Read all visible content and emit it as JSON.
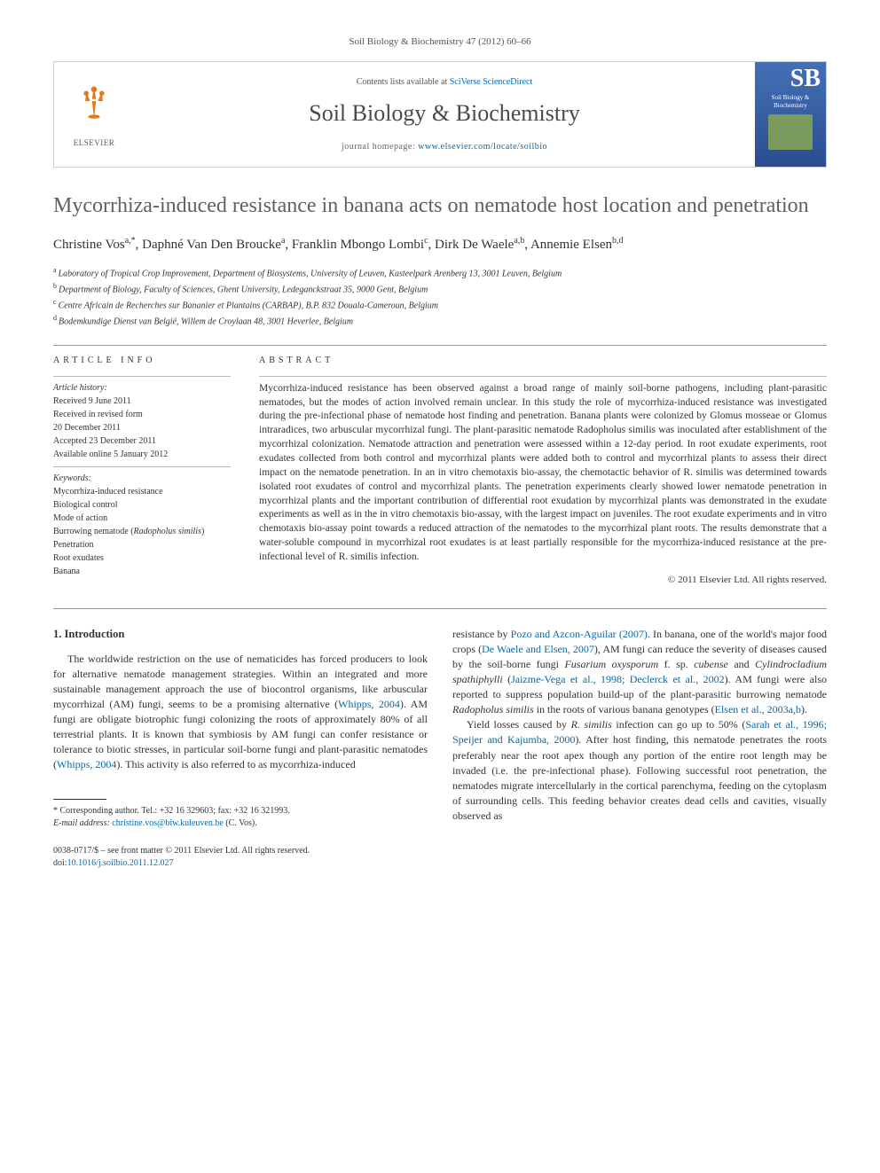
{
  "citation": "Soil Biology & Biochemistry 47 (2012) 60–66",
  "header": {
    "publisher_name": "ELSEVIER",
    "contents_prefix": "Contents lists available at ",
    "contents_link": "SciVerse ScienceDirect",
    "journal_name": "Soil Biology & Biochemistry",
    "homepage_prefix": "journal homepage: ",
    "homepage_url": "www.elsevier.com/locate/soilbio",
    "cover_sb": "SB",
    "cover_title": "Soil Biology & Biochemistry"
  },
  "title": "Mycorrhiza-induced resistance in banana acts on nematode host location and penetration",
  "authors_html": "Christine Vos<sup>a,*</sup>, Daphné Van Den Broucke<sup>a</sup>, Franklin Mbongo Lombi<sup>c</sup>, Dirk De Waele<sup>a,b</sup>, Annemie Elsen<sup>b,d</sup>",
  "affiliations": [
    {
      "sup": "a",
      "text": "Laboratory of Tropical Crop Improvement, Department of Biosystems, University of Leuven, Kasteelpark Arenberg 13, 3001 Leuven, Belgium"
    },
    {
      "sup": "b",
      "text": "Department of Biology, Faculty of Sciences, Ghent University, Ledeganckstraat 35, 9000 Gent, Belgium"
    },
    {
      "sup": "c",
      "text": "Centre Africain de Recherches sur Bananier et Plantains (CARBAP), B.P. 832 Douala-Cameroun, Belgium"
    },
    {
      "sup": "d",
      "text": "Bodemkundige Dienst van België, Willem de Croylaan 48, 3001 Heverlee, Belgium"
    }
  ],
  "article_info": {
    "label": "ARTICLE INFO",
    "history_label": "Article history:",
    "received": "Received 9 June 2011",
    "revised1": "Received in revised form",
    "revised2": "20 December 2011",
    "accepted": "Accepted 23 December 2011",
    "online": "Available online 5 January 2012",
    "keywords_label": "Keywords:",
    "keywords": [
      "Mycorrhiza-induced resistance",
      "Biological control",
      "Mode of action",
      "Burrowing nematode (Radopholus similis)",
      "Penetration",
      "Root exudates",
      "Banana"
    ]
  },
  "abstract": {
    "label": "ABSTRACT",
    "text": "Mycorrhiza-induced resistance has been observed against a broad range of mainly soil-borne pathogens, including plant-parasitic nematodes, but the modes of action involved remain unclear. In this study the role of mycorrhiza-induced resistance was investigated during the pre-infectional phase of nematode host finding and penetration. Banana plants were colonized by Glomus mosseae or Glomus intraradices, two arbuscular mycorrhizal fungi. The plant-parasitic nematode Radopholus similis was inoculated after establishment of the mycorrhizal colonization. Nematode attraction and penetration were assessed within a 12-day period. In root exudate experiments, root exudates collected from both control and mycorrhizal plants were added both to control and mycorrhizal plants to assess their direct impact on the nematode penetration. In an in vitro chemotaxis bio-assay, the chemotactic behavior of R. similis was determined towards isolated root exudates of control and mycorrhizal plants. The penetration experiments clearly showed lower nematode penetration in mycorrhizal plants and the important contribution of differential root exudation by mycorrhizal plants was demonstrated in the exudate experiments as well as in the in vitro chemotaxis bio-assay, with the largest impact on juveniles. The root exudate experiments and in vitro chemotaxis bio-assay point towards a reduced attraction of the nematodes to the mycorrhizal plant roots. The results demonstrate that a water-soluble compound in mycorrhizal root exudates is at least partially responsible for the mycorrhiza-induced resistance at the pre-infectional level of R. similis infection.",
    "copyright": "© 2011 Elsevier Ltd. All rights reserved."
  },
  "intro": {
    "heading": "1. Introduction",
    "col1_html": "The worldwide restriction on the use of nematicides has forced producers to look for alternative nematode management strategies. Within an integrated and more sustainable management approach the use of biocontrol organisms, like arbuscular mycorrhizal (AM) fungi, seems to be a promising alternative (<a href='#'>Whipps, 2004</a>). AM fungi are obligate biotrophic fungi colonizing the roots of approximately 80% of all terrestrial plants. It is known that symbiosis by AM fungi can confer resistance or tolerance to biotic stresses, in particular soil-borne fungi and plant-parasitic nematodes (<a href='#'>Whipps, 2004</a>). This activity is also referred to as mycorrhiza-induced",
    "col2_html": "resistance by <a href='#'>Pozo and Azcon-Aguilar (2007)</a>. In banana, one of the world's major food crops (<a href='#'>De Waele and Elsen, 2007</a>), AM fungi can reduce the severity of diseases caused by the soil-borne fungi <span class='species'>Fusarium oxysporum</span> f. sp. <span class='species'>cubense</span> and <span class='species'>Cylindrocladium spathiphylli</span> (<a href='#'>Jaizme-Vega et al., 1998; Declerck et al., 2002</a>). AM fungi were also reported to suppress population build-up of the plant-parasitic burrowing nematode <span class='species'>Radopholus similis</span> in the roots of various banana genotypes (<a href='#'>Elsen et al., 2003a,b</a>).",
    "col2_p2_html": "Yield losses caused by <span class='species'>R. similis</span> infection can go up to 50% (<a href='#'>Sarah et al., 1996; Speijer and Kajumba, 2000</a>). After host finding, this nematode penetrates the roots preferably near the root apex though any portion of the entire root length may be invaded (i.e. the pre-infectional phase). Following successful root penetration, the nematodes migrate intercellularly in the cortical parenchyma, feeding on the cytoplasm of surrounding cells. This feeding behavior creates dead cells and cavities, visually observed as"
  },
  "footnote": {
    "corr": "* Corresponding author. Tel.: +32 16 329603; fax: +32 16 321993.",
    "email_label": "E-mail address:",
    "email": "christine.vos@biw.kuleuven.be",
    "email_who": "(C. Vos)."
  },
  "footer": {
    "issn": "0038-0717/$ – see front matter © 2011 Elsevier Ltd. All rights reserved.",
    "doi_label": "doi:",
    "doi": "10.1016/j.soilbio.2011.12.027"
  },
  "colors": {
    "link": "#0868a8",
    "elsevier_orange": "#e67817",
    "title_gray": "#606060"
  }
}
